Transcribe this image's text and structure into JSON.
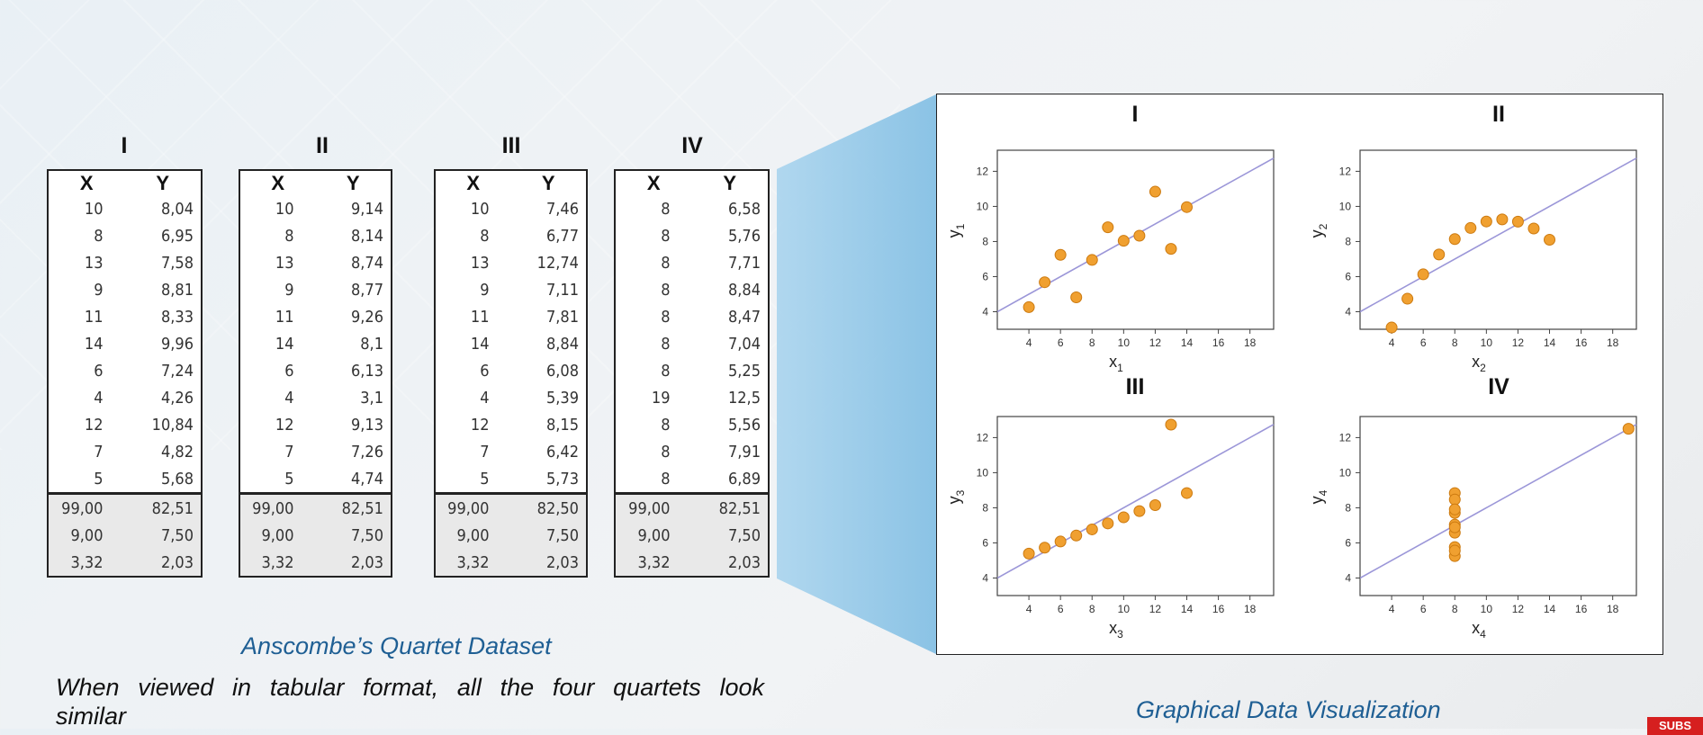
{
  "quartets": [
    {
      "title": "I",
      "x_header": "X",
      "y_header": "Y",
      "rows": [
        [
          "10",
          "8,04"
        ],
        [
          "8",
          "6,95"
        ],
        [
          "13",
          "7,58"
        ],
        [
          "9",
          "8,81"
        ],
        [
          "11",
          "8,33"
        ],
        [
          "14",
          "9,96"
        ],
        [
          "6",
          "7,24"
        ],
        [
          "4",
          "4,26"
        ],
        [
          "12",
          "10,84"
        ],
        [
          "7",
          "4,82"
        ],
        [
          "5",
          "5,68"
        ]
      ],
      "summary": [
        [
          "99,00",
          "82,51"
        ],
        [
          "9,00",
          "7,50"
        ],
        [
          "3,32",
          "2,03"
        ]
      ]
    },
    {
      "title": "II",
      "x_header": "X",
      "y_header": "Y",
      "rows": [
        [
          "10",
          "9,14"
        ],
        [
          "8",
          "8,14"
        ],
        [
          "13",
          "8,74"
        ],
        [
          "9",
          "8,77"
        ],
        [
          "11",
          "9,26"
        ],
        [
          "14",
          "8,1"
        ],
        [
          "6",
          "6,13"
        ],
        [
          "4",
          "3,1"
        ],
        [
          "12",
          "9,13"
        ],
        [
          "7",
          "7,26"
        ],
        [
          "5",
          "4,74"
        ]
      ],
      "summary": [
        [
          "99,00",
          "82,51"
        ],
        [
          "9,00",
          "7,50"
        ],
        [
          "3,32",
          "2,03"
        ]
      ]
    },
    {
      "title": "III",
      "x_header": "X",
      "y_header": "Y",
      "rows": [
        [
          "10",
          "7,46"
        ],
        [
          "8",
          "6,77"
        ],
        [
          "13",
          "12,74"
        ],
        [
          "9",
          "7,11"
        ],
        [
          "11",
          "7,81"
        ],
        [
          "14",
          "8,84"
        ],
        [
          "6",
          "6,08"
        ],
        [
          "4",
          "5,39"
        ],
        [
          "12",
          "8,15"
        ],
        [
          "7",
          "6,42"
        ],
        [
          "5",
          "5,73"
        ]
      ],
      "summary": [
        [
          "99,00",
          "82,50"
        ],
        [
          "9,00",
          "7,50"
        ],
        [
          "3,32",
          "2,03"
        ]
      ]
    },
    {
      "title": "IV",
      "x_header": "X",
      "y_header": "Y",
      "rows": [
        [
          "8",
          "6,58"
        ],
        [
          "8",
          "5,76"
        ],
        [
          "8",
          "7,71"
        ],
        [
          "8",
          "8,84"
        ],
        [
          "8",
          "8,47"
        ],
        [
          "8",
          "7,04"
        ],
        [
          "8",
          "5,25"
        ],
        [
          "19",
          "12,5"
        ],
        [
          "8",
          "5,56"
        ],
        [
          "8",
          "7,91"
        ],
        [
          "8",
          "6,89"
        ]
      ],
      "summary": [
        [
          "99,00",
          "82,51"
        ],
        [
          "9,00",
          "7,50"
        ],
        [
          "3,32",
          "2,03"
        ]
      ]
    }
  ],
  "caption_left": "Anscombe’s Quartet Dataset",
  "description_line1": "When viewed in tabular format, all the four quartets look",
  "description_line2": "similar",
  "caption_right": "Graphical Data Visualization",
  "subs_badge": "SUBS",
  "colors": {
    "point": "#f0a030",
    "point_edge": "#cc7a10",
    "fit_line": "#9b96d8",
    "caption": "#1f5f94",
    "highlight": "#89c4e8"
  },
  "chart_data": [
    {
      "type": "scatter",
      "title": "I",
      "xlabel": "x",
      "xlabel_sub": "1",
      "ylabel": "y",
      "ylabel_sub": "1",
      "xlim": [
        2,
        19.5
      ],
      "ylim": [
        3,
        13.2
      ],
      "xticks": [
        "4",
        "6",
        "8",
        "10",
        "12",
        "14",
        "16",
        "18"
      ],
      "yticks": [
        "4",
        "6",
        "8",
        "10",
        "12"
      ],
      "points": [
        [
          10,
          8.04
        ],
        [
          8,
          6.95
        ],
        [
          13,
          7.58
        ],
        [
          9,
          8.81
        ],
        [
          11,
          8.33
        ],
        [
          14,
          9.96
        ],
        [
          6,
          7.24
        ],
        [
          4,
          4.26
        ],
        [
          12,
          10.84
        ],
        [
          7,
          4.82
        ],
        [
          5,
          5.68
        ]
      ],
      "fit_line": {
        "slope": 0.5,
        "intercept": 3
      }
    },
    {
      "type": "scatter",
      "title": "II",
      "xlabel": "x",
      "xlabel_sub": "2",
      "ylabel": "y",
      "ylabel_sub": "2",
      "xlim": [
        2,
        19.5
      ],
      "ylim": [
        3,
        13.2
      ],
      "xticks": [
        "4",
        "6",
        "8",
        "10",
        "12",
        "14",
        "16",
        "18"
      ],
      "yticks": [
        "4",
        "6",
        "8",
        "10",
        "12"
      ],
      "points": [
        [
          10,
          9.14
        ],
        [
          8,
          8.14
        ],
        [
          13,
          8.74
        ],
        [
          9,
          8.77
        ],
        [
          11,
          9.26
        ],
        [
          14,
          8.1
        ],
        [
          6,
          6.13
        ],
        [
          4,
          3.1
        ],
        [
          12,
          9.13
        ],
        [
          7,
          7.26
        ],
        [
          5,
          4.74
        ]
      ],
      "fit_line": {
        "slope": 0.5,
        "intercept": 3
      }
    },
    {
      "type": "scatter",
      "title": "III",
      "xlabel": "x",
      "xlabel_sub": "3",
      "ylabel": "y",
      "ylabel_sub": "3",
      "xlim": [
        2,
        19.5
      ],
      "ylim": [
        3,
        13.2
      ],
      "xticks": [
        "4",
        "6",
        "8",
        "10",
        "12",
        "14",
        "16",
        "18"
      ],
      "yticks": [
        "4",
        "6",
        "8",
        "10",
        "12"
      ],
      "points": [
        [
          10,
          7.46
        ],
        [
          8,
          6.77
        ],
        [
          13,
          12.74
        ],
        [
          9,
          7.11
        ],
        [
          11,
          7.81
        ],
        [
          14,
          8.84
        ],
        [
          6,
          6.08
        ],
        [
          4,
          5.39
        ],
        [
          12,
          8.15
        ],
        [
          7,
          6.42
        ],
        [
          5,
          5.73
        ]
      ],
      "fit_line": {
        "slope": 0.5,
        "intercept": 3
      }
    },
    {
      "type": "scatter",
      "title": "IV",
      "xlabel": "x",
      "xlabel_sub": "4",
      "ylabel": "y",
      "ylabel_sub": "4",
      "xlim": [
        2,
        19.5
      ],
      "ylim": [
        3,
        13.2
      ],
      "xticks": [
        "4",
        "6",
        "8",
        "10",
        "12",
        "14",
        "16",
        "18"
      ],
      "yticks": [
        "4",
        "6",
        "8",
        "10",
        "12"
      ],
      "points": [
        [
          8,
          6.58
        ],
        [
          8,
          5.76
        ],
        [
          8,
          7.71
        ],
        [
          8,
          8.84
        ],
        [
          8,
          8.47
        ],
        [
          8,
          7.04
        ],
        [
          8,
          5.25
        ],
        [
          19,
          12.5
        ],
        [
          8,
          5.56
        ],
        [
          8,
          7.91
        ],
        [
          8,
          6.89
        ]
      ],
      "fit_line": {
        "slope": 0.5,
        "intercept": 3
      }
    }
  ]
}
